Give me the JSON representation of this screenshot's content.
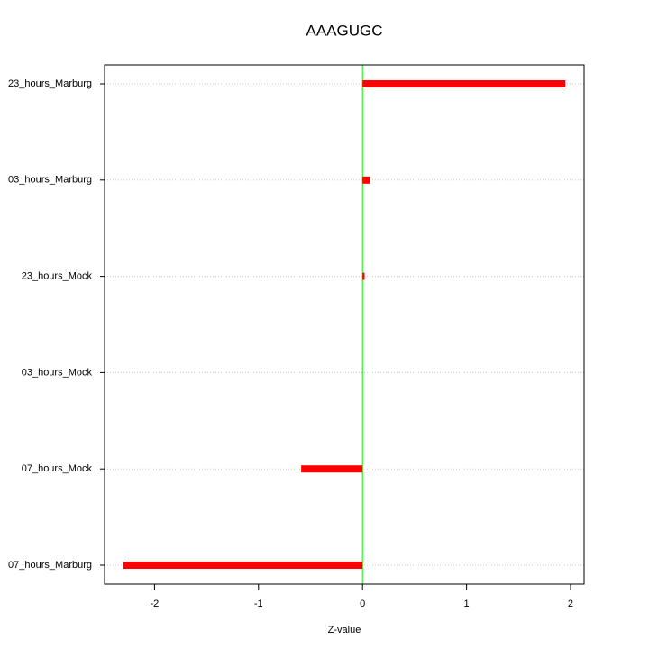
{
  "chart_data": {
    "type": "bar",
    "orientation": "horizontal",
    "title": "AAAGUGC",
    "x_label": "Z-value",
    "categories": [
      "23_hours_Marburg",
      "03_hours_Marburg",
      "23_hours_Mock",
      "03_hours_Mock",
      "07_hours_Mock",
      "07_hours_Marburg"
    ],
    "values": [
      1.95,
      0.07,
      0.02,
      0.0,
      -0.59,
      -2.3
    ],
    "color": "#ff0000",
    "xlim": [
      -2.48,
      2.13
    ],
    "xticks": [
      -2,
      -1,
      0,
      1,
      2
    ],
    "reference_line": {
      "value": 0,
      "color": "#00ee00"
    },
    "grid": true
  }
}
